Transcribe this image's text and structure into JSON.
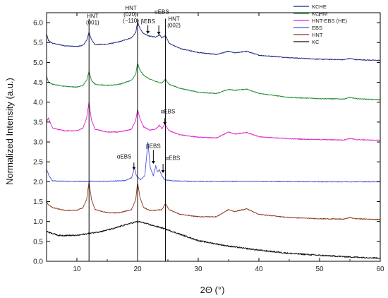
{
  "chart_data": {
    "type": "line",
    "title": "",
    "xlabel": "2Θ (°)",
    "ylabel": "Normalized Intensity (a.u.)",
    "xlim": [
      5,
      60
    ],
    "ylim": [
      0.0,
      6.25
    ],
    "xticks": [
      "10",
      "20",
      "30",
      "40",
      "50",
      "60"
    ],
    "yticks": [
      "0.0",
      "0.5",
      "1.0",
      "1.5",
      "2.0",
      "2.5",
      "3.0",
      "3.5",
      "4.0",
      "4.5",
      "5.0",
      "5.5",
      "6.0"
    ],
    "grid": false,
    "legend_position": "top-right",
    "reference_lines_x": [
      12.0,
      20.0,
      24.6
    ],
    "annotations": [
      {
        "text": [
          "HNT",
          "(001)"
        ],
        "x": 12.6,
        "y": 6.12
      },
      {
        "text": [
          "HNT",
          "(020),",
          "(−110)"
        ],
        "x": 18.9,
        "y": 6.32
      },
      {
        "text": [
          "βEBS"
        ],
        "x": 21.7,
        "y": 5.98
      },
      {
        "text": [
          "αEBS"
        ],
        "x": 24.0,
        "y": 6.22
      },
      {
        "text": [
          "HNT",
          "(002)"
        ],
        "x": 26.0,
        "y": 6.05
      },
      {
        "text": [
          "αEBS"
        ],
        "x": 25.0,
        "y": 3.72
      },
      {
        "text": [
          "αEBS"
        ],
        "x": 17.8,
        "y": 2.58
      },
      {
        "text": [
          "βEBS"
        ],
        "x": 22.6,
        "y": 2.85
      },
      {
        "text": [
          "αEBS"
        ],
        "x": 25.8,
        "y": 2.55
      }
    ],
    "arrows": [
      {
        "x": 21.7,
        "y_from": 5.94,
        "y_to": 5.72
      },
      {
        "x": 23.5,
        "y_from": 5.93,
        "y_to": 5.7
      },
      {
        "x": 24.5,
        "y_from": 3.6,
        "y_to": 3.43
      },
      {
        "x": 19.4,
        "y_from": 2.48,
        "y_to": 2.3
      },
      {
        "x": 22.6,
        "y_from": 2.8,
        "y_to": 2.45
      },
      {
        "x": 24.2,
        "y_from": 2.45,
        "y_to": 2.22
      }
    ],
    "series": [
      {
        "name": "KCHE",
        "color": "#1a237e",
        "baseline": 5.05,
        "points": [
          [
            5,
            5.72
          ],
          [
            5.3,
            5.55
          ],
          [
            6,
            5.48
          ],
          [
            8,
            5.42
          ],
          [
            10,
            5.4
          ],
          [
            11,
            5.43
          ],
          [
            11.6,
            5.55
          ],
          [
            12,
            5.76
          ],
          [
            12.4,
            5.57
          ],
          [
            13,
            5.45
          ],
          [
            15,
            5.46
          ],
          [
            17,
            5.52
          ],
          [
            19,
            5.62
          ],
          [
            19.7,
            5.75
          ],
          [
            20,
            6.02
          ],
          [
            20.4,
            5.85
          ],
          [
            21,
            5.72
          ],
          [
            22,
            5.66
          ],
          [
            23,
            5.64
          ],
          [
            23.6,
            5.7
          ],
          [
            24,
            5.62
          ],
          [
            24.6,
            5.68
          ],
          [
            25.2,
            5.48
          ],
          [
            27,
            5.35
          ],
          [
            30,
            5.25
          ],
          [
            33,
            5.2
          ],
          [
            35,
            5.28
          ],
          [
            36,
            5.24
          ],
          [
            38,
            5.28
          ],
          [
            40,
            5.18
          ],
          [
            45,
            5.12
          ],
          [
            50,
            5.08
          ],
          [
            54,
            5.07
          ],
          [
            55,
            5.1
          ],
          [
            56,
            5.07
          ],
          [
            60,
            5.05
          ]
        ]
      },
      {
        "name": "KCHM",
        "color": "#1b8a2e",
        "baseline": 4.05,
        "points": [
          [
            5,
            4.67
          ],
          [
            5.3,
            4.5
          ],
          [
            6,
            4.45
          ],
          [
            8,
            4.4
          ],
          [
            10,
            4.38
          ],
          [
            11,
            4.42
          ],
          [
            11.6,
            4.55
          ],
          [
            12,
            4.78
          ],
          [
            12.4,
            4.55
          ],
          [
            13,
            4.45
          ],
          [
            15,
            4.42
          ],
          [
            17,
            4.45
          ],
          [
            19,
            4.55
          ],
          [
            19.7,
            4.7
          ],
          [
            20,
            4.98
          ],
          [
            20.4,
            4.8
          ],
          [
            21,
            4.68
          ],
          [
            22,
            4.58
          ],
          [
            23,
            4.52
          ],
          [
            24,
            4.48
          ],
          [
            24.6,
            4.58
          ],
          [
            25.2,
            4.45
          ],
          [
            27,
            4.35
          ],
          [
            30,
            4.25
          ],
          [
            33,
            4.22
          ],
          [
            35,
            4.32
          ],
          [
            36,
            4.3
          ],
          [
            38,
            4.33
          ],
          [
            40,
            4.22
          ],
          [
            45,
            4.12
          ],
          [
            50,
            4.09
          ],
          [
            54,
            4.08
          ],
          [
            55,
            4.12
          ],
          [
            56,
            4.09
          ],
          [
            60,
            4.06
          ]
        ]
      },
      {
        "name": "HNT-EBS (HE)",
        "color": "#e020c8",
        "baseline": 3.03,
        "points": [
          [
            5,
            3.5
          ],
          [
            5.3,
            3.6
          ],
          [
            6,
            3.35
          ],
          [
            8,
            3.28
          ],
          [
            10,
            3.28
          ],
          [
            11,
            3.35
          ],
          [
            11.6,
            3.6
          ],
          [
            12,
            4.0
          ],
          [
            12.4,
            3.55
          ],
          [
            13,
            3.32
          ],
          [
            15,
            3.25
          ],
          [
            17,
            3.25
          ],
          [
            19,
            3.32
          ],
          [
            19.7,
            3.55
          ],
          [
            20,
            3.82
          ],
          [
            20.4,
            3.58
          ],
          [
            21,
            3.38
          ],
          [
            22,
            3.3
          ],
          [
            23,
            3.32
          ],
          [
            23.6,
            3.42
          ],
          [
            24,
            3.33
          ],
          [
            24.5,
            3.45
          ],
          [
            25.2,
            3.28
          ],
          [
            27,
            3.18
          ],
          [
            30,
            3.12
          ],
          [
            33,
            3.1
          ],
          [
            35,
            3.25
          ],
          [
            36,
            3.2
          ],
          [
            38,
            3.24
          ],
          [
            40,
            3.13
          ],
          [
            45,
            3.08
          ],
          [
            50,
            3.06
          ],
          [
            54,
            3.05
          ],
          [
            55,
            3.09
          ],
          [
            56,
            3.06
          ],
          [
            60,
            3.04
          ]
        ]
      },
      {
        "name": "EBS",
        "color": "#4a55d8",
        "baseline": 2.0,
        "points": [
          [
            5,
            2.32
          ],
          [
            5.4,
            2.15
          ],
          [
            6,
            2.02
          ],
          [
            9,
            2.01
          ],
          [
            12,
            2.01
          ],
          [
            15,
            2.01
          ],
          [
            18,
            2.03
          ],
          [
            19,
            2.1
          ],
          [
            19.5,
            2.35
          ],
          [
            19.8,
            2.15
          ],
          [
            20.5,
            2.05
          ],
          [
            21.2,
            2.15
          ],
          [
            21.7,
            3.0
          ],
          [
            22.1,
            2.35
          ],
          [
            22.6,
            2.15
          ],
          [
            23,
            2.4
          ],
          [
            23.3,
            2.25
          ],
          [
            23.6,
            2.3
          ],
          [
            24,
            2.15
          ],
          [
            24.5,
            2.05
          ],
          [
            26,
            2.02
          ],
          [
            30,
            2.01
          ],
          [
            35,
            2.01
          ],
          [
            40,
            2.01
          ],
          [
            50,
            2.0
          ],
          [
            60,
            2.0
          ]
        ]
      },
      {
        "name": "HNT",
        "color": "#8b3a1a",
        "baseline": 1.05,
        "points": [
          [
            5,
            1.5
          ],
          [
            5.3,
            1.42
          ],
          [
            6,
            1.35
          ],
          [
            8,
            1.28
          ],
          [
            10,
            1.28
          ],
          [
            11,
            1.35
          ],
          [
            11.6,
            1.55
          ],
          [
            12,
            2.0
          ],
          [
            12.4,
            1.55
          ],
          [
            13,
            1.3
          ],
          [
            15,
            1.22
          ],
          [
            17,
            1.22
          ],
          [
            19,
            1.3
          ],
          [
            19.7,
            1.55
          ],
          [
            20,
            1.98
          ],
          [
            20.4,
            1.6
          ],
          [
            21,
            1.35
          ],
          [
            22,
            1.28
          ],
          [
            23,
            1.28
          ],
          [
            24,
            1.3
          ],
          [
            24.6,
            1.45
          ],
          [
            25.2,
            1.3
          ],
          [
            27,
            1.18
          ],
          [
            30,
            1.12
          ],
          [
            33,
            1.12
          ],
          [
            35,
            1.3
          ],
          [
            36,
            1.25
          ],
          [
            38,
            1.32
          ],
          [
            40,
            1.18
          ],
          [
            45,
            1.1
          ],
          [
            50,
            1.07
          ],
          [
            54,
            1.06
          ],
          [
            55,
            1.1
          ],
          [
            56,
            1.07
          ],
          [
            60,
            1.05
          ]
        ]
      },
      {
        "name": "KC",
        "color": "#111111",
        "baseline": 0.08,
        "points": [
          [
            5,
            0.75
          ],
          [
            7,
            0.65
          ],
          [
            10,
            0.65
          ],
          [
            12,
            0.7
          ],
          [
            14,
            0.75
          ],
          [
            16,
            0.82
          ],
          [
            18,
            0.92
          ],
          [
            19.5,
            0.98
          ],
          [
            20,
            1.0
          ],
          [
            21,
            0.97
          ],
          [
            22,
            0.92
          ],
          [
            24,
            0.84
          ],
          [
            27,
            0.68
          ],
          [
            30,
            0.52
          ],
          [
            35,
            0.38
          ],
          [
            40,
            0.28
          ],
          [
            45,
            0.2
          ],
          [
            50,
            0.15
          ],
          [
            55,
            0.11
          ],
          [
            60,
            0.08
          ]
        ]
      }
    ]
  }
}
